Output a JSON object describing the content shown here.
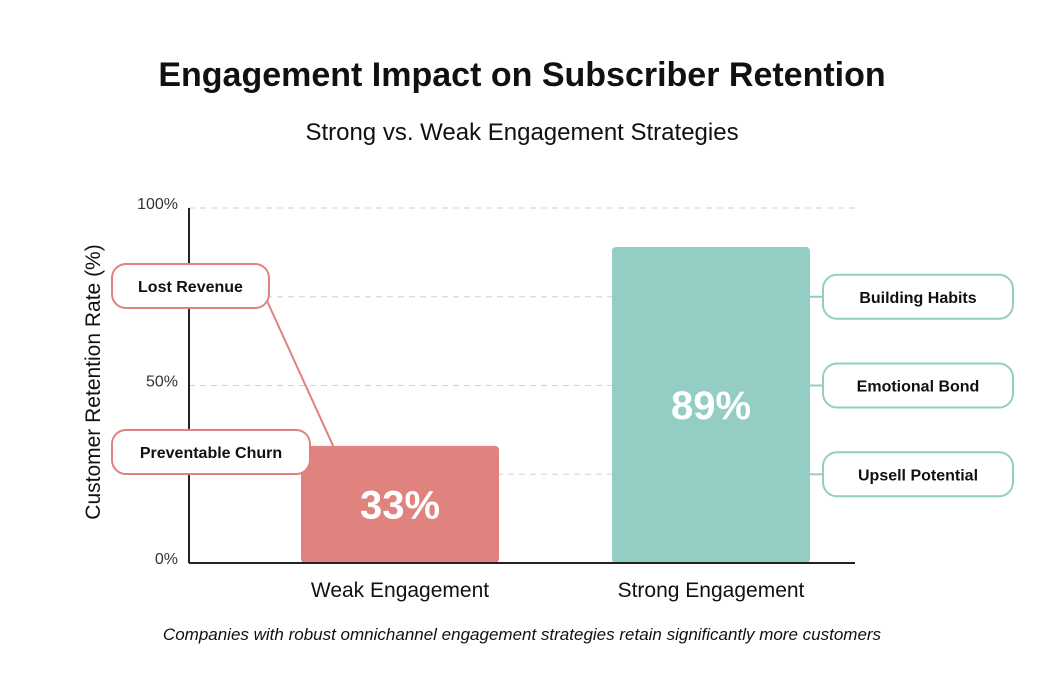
{
  "chart_data": {
    "type": "bar",
    "title": "Engagement Impact on Subscriber Retention",
    "subtitle": "Strong vs. Weak Engagement Strategies",
    "ylabel": "Customer Retention Rate (%)",
    "xlabel": "",
    "ylim": [
      0,
      100
    ],
    "yticks": [
      {
        "value": 0,
        "label": "0%"
      },
      {
        "value": 50,
        "label": "50%"
      },
      {
        "value": 100,
        "label": "100%"
      }
    ],
    "gridlines": [
      25,
      50,
      75,
      100
    ],
    "categories": [
      "Weak Engagement",
      "Strong Engagement"
    ],
    "values": [
      33,
      89
    ],
    "value_labels": [
      "33%",
      "89%"
    ],
    "colors": [
      "#e0827e",
      "#93cdc4"
    ],
    "callouts": [
      {
        "label": "Lost Revenue",
        "bar": 0,
        "color": "#e0827e",
        "value": 75
      },
      {
        "label": "Preventable Churn",
        "bar": 0,
        "color": "#e0827e",
        "value": 29
      },
      {
        "label": "Building Habits",
        "bar": 1,
        "color": "#93cdc4",
        "value": 75
      },
      {
        "label": "Emotional Bond",
        "bar": 1,
        "color": "#93cdc4",
        "value": 50
      },
      {
        "label": "Upsell Potential",
        "bar": 1,
        "color": "#93cdc4",
        "value": 25
      }
    ],
    "caption": "Companies with robust omnichannel engagement strategies retain significantly more customers"
  }
}
